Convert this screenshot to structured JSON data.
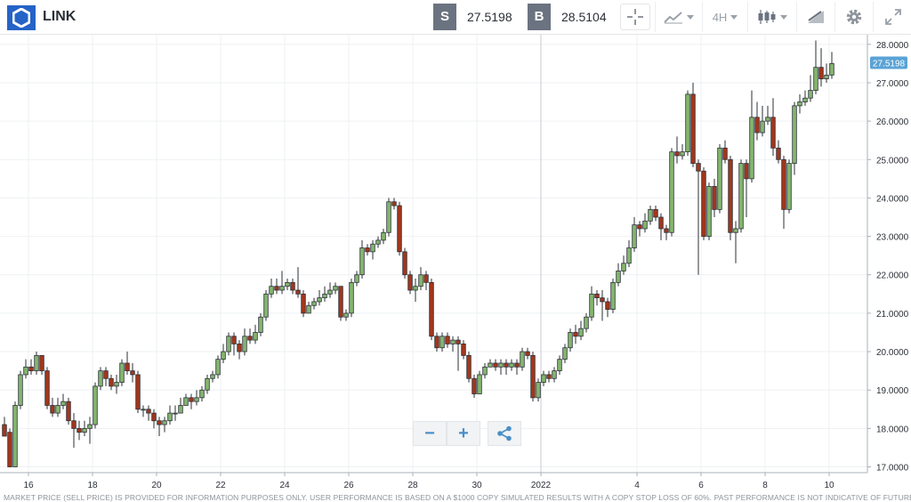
{
  "header": {
    "symbol": "LINK",
    "sell_tag": "S",
    "sell_price": "27.5198",
    "buy_tag": "B",
    "buy_price": "28.5104",
    "timeframe": "4H"
  },
  "icons": {
    "logo": "hexagon-logo-icon",
    "crosshair": "crosshair-icon",
    "chart_type": "line-chart-icon",
    "candles": "candlestick-icon",
    "drawing": "drawing-tool-icon",
    "settings": "gear-icon",
    "fullscreen": "expand-icon"
  },
  "colors": {
    "up": "#83b66f",
    "down": "#a3361c",
    "price_tag": "#5aa3d6",
    "grid": "#eef0f3",
    "crosshair": "#c7cbd1"
  },
  "zoom": {
    "minus": "−",
    "plus": "+"
  },
  "footer_text": "MARKET PRICE (SELL PRICE) IS PROVIDED FOR INFORMATION PURPOSES ONLY. USER PERFORMANCE IS BASED ON A $1000 COPY SIMULATED RESULTS WITH A COPY STOP LOSS OF 60%. PAST PERFORMANCE IS NOT INDICATIVE OF FUTURE RESULTS.",
  "chart_data": {
    "type": "candlestick",
    "interval": "4H",
    "ylim": [
      16.85,
      28.25
    ],
    "y_ticks": [
      "17.0000",
      "18.0000",
      "19.0000",
      "20.0000",
      "21.0000",
      "22.0000",
      "23.0000",
      "24.0000",
      "25.0000",
      "26.0000",
      "27.0000",
      "28.0000"
    ],
    "x_ticks": [
      "16",
      "18",
      "20",
      "22",
      "24",
      "26",
      "28",
      "30",
      "2022",
      "4",
      "6",
      "8",
      "10"
    ],
    "x_tick_index": [
      2,
      14,
      26,
      38,
      50,
      62,
      74,
      86,
      98,
      116,
      128,
      140,
      152
    ],
    "last_price": "27.5198",
    "crosshair_index": 98,
    "candles": [
      [
        18.1,
        17.8,
        18.3,
        17.9
      ],
      [
        17.9,
        17.0,
        18.0,
        17.0
      ],
      [
        17.0,
        18.6,
        18.7,
        17.0
      ],
      [
        18.6,
        19.4,
        19.5,
        18.5
      ],
      [
        19.4,
        19.6,
        19.8,
        19.3
      ],
      [
        19.6,
        19.5,
        19.8,
        19.4
      ],
      [
        19.5,
        19.9,
        20.0,
        19.4
      ],
      [
        19.9,
        19.5,
        19.9,
        19.4
      ],
      [
        19.5,
        18.6,
        19.6,
        18.5
      ],
      [
        18.6,
        18.4,
        18.8,
        18.3
      ],
      [
        18.4,
        18.6,
        18.8,
        18.3
      ],
      [
        18.6,
        18.7,
        18.9,
        18.5
      ],
      [
        18.7,
        18.2,
        18.8,
        18.1
      ],
      [
        18.2,
        18.0,
        18.4,
        17.5
      ],
      [
        18.0,
        17.9,
        18.2,
        17.7
      ],
      [
        17.9,
        18.0,
        18.2,
        17.8
      ],
      [
        18.0,
        18.1,
        18.3,
        17.6
      ],
      [
        18.1,
        19.1,
        19.2,
        18.0
      ],
      [
        19.1,
        19.5,
        19.6,
        19.0
      ],
      [
        19.5,
        19.3,
        19.6,
        19.1
      ],
      [
        19.3,
        19.1,
        19.4,
        19.0
      ],
      [
        19.1,
        19.2,
        19.4,
        18.9
      ],
      [
        19.2,
        19.7,
        19.8,
        19.1
      ],
      [
        19.7,
        19.5,
        20.0,
        19.4
      ],
      [
        19.5,
        19.4,
        19.7,
        19.2
      ],
      [
        19.4,
        18.5,
        19.5,
        18.4
      ],
      [
        18.5,
        18.5,
        18.6,
        18.3
      ],
      [
        18.5,
        18.4,
        18.6,
        18.2
      ],
      [
        18.4,
        18.2,
        18.5,
        18.0
      ],
      [
        18.2,
        18.1,
        18.3,
        17.8
      ],
      [
        18.1,
        18.2,
        18.3,
        17.9
      ],
      [
        18.2,
        18.4,
        18.6,
        18.1
      ],
      [
        18.4,
        18.4,
        18.6,
        18.2
      ],
      [
        18.4,
        18.6,
        18.8,
        18.4
      ],
      [
        18.6,
        18.8,
        18.9,
        18.6
      ],
      [
        18.8,
        18.7,
        18.9,
        18.5
      ],
      [
        18.7,
        18.8,
        19.0,
        18.6
      ],
      [
        18.8,
        19.0,
        19.1,
        18.7
      ],
      [
        19.0,
        19.3,
        19.4,
        18.9
      ],
      [
        19.3,
        19.4,
        19.5,
        19.2
      ],
      [
        19.4,
        19.8,
        19.9,
        19.3
      ],
      [
        19.8,
        20.0,
        20.2,
        19.7
      ],
      [
        20.0,
        20.4,
        20.5,
        19.9
      ],
      [
        20.4,
        20.2,
        20.5,
        19.9
      ],
      [
        20.2,
        20.0,
        20.3,
        19.8
      ],
      [
        20.0,
        20.4,
        20.6,
        19.9
      ],
      [
        20.4,
        20.3,
        20.6,
        20.2
      ],
      [
        20.3,
        20.5,
        20.7,
        20.2
      ],
      [
        20.5,
        20.9,
        21.0,
        20.4
      ],
      [
        20.9,
        21.5,
        21.6,
        20.8
      ],
      [
        21.5,
        21.7,
        21.9,
        21.4
      ],
      [
        21.7,
        21.6,
        21.9,
        21.5
      ],
      [
        21.6,
        21.7,
        22.1,
        21.5
      ],
      [
        21.7,
        21.8,
        21.9,
        21.6
      ],
      [
        21.8,
        21.6,
        21.9,
        21.5
      ],
      [
        21.6,
        21.5,
        22.2,
        21.4
      ],
      [
        21.5,
        21.0,
        21.6,
        20.9
      ],
      [
        21.0,
        21.2,
        21.3,
        21.0
      ],
      [
        21.2,
        21.3,
        21.4,
        21.1
      ],
      [
        21.3,
        21.4,
        21.6,
        21.2
      ],
      [
        21.4,
        21.5,
        21.7,
        21.3
      ],
      [
        21.5,
        21.6,
        21.8,
        21.4
      ],
      [
        21.6,
        21.7,
        21.8,
        21.5
      ],
      [
        21.7,
        20.9,
        21.7,
        20.8
      ],
      [
        20.9,
        21.0,
        21.1,
        20.8
      ],
      [
        21.0,
        21.8,
        21.9,
        20.9
      ],
      [
        21.8,
        22.0,
        22.1,
        21.7
      ],
      [
        22.0,
        22.7,
        22.9,
        21.9
      ],
      [
        22.7,
        22.6,
        22.8,
        22.5
      ],
      [
        22.6,
        22.8,
        22.9,
        22.4
      ],
      [
        22.8,
        22.9,
        23.0,
        22.7
      ],
      [
        22.9,
        23.1,
        23.2,
        22.8
      ],
      [
        23.1,
        23.9,
        24.0,
        23.0
      ],
      [
        23.9,
        23.8,
        24.0,
        23.7
      ],
      [
        23.8,
        22.6,
        23.9,
        22.5
      ],
      [
        22.6,
        22.0,
        22.7,
        21.9
      ],
      [
        22.0,
        21.6,
        22.1,
        21.5
      ],
      [
        21.6,
        21.7,
        21.9,
        21.3
      ],
      [
        21.7,
        22.0,
        22.2,
        21.6
      ],
      [
        22.0,
        21.8,
        22.1,
        21.6
      ],
      [
        21.8,
        20.4,
        21.9,
        20.3
      ],
      [
        20.4,
        20.1,
        20.5,
        20.0
      ],
      [
        20.1,
        20.4,
        20.5,
        20.0
      ],
      [
        20.4,
        20.2,
        20.5,
        20.1
      ],
      [
        20.2,
        20.3,
        20.4,
        20.0
      ],
      [
        20.3,
        20.2,
        20.4,
        19.5
      ],
      [
        20.2,
        19.9,
        20.3,
        19.8
      ],
      [
        19.9,
        19.3,
        20.0,
        19.2
      ],
      [
        19.3,
        18.9,
        19.4,
        18.8
      ],
      [
        18.9,
        19.4,
        19.5,
        18.9
      ],
      [
        19.4,
        19.6,
        19.7,
        19.3
      ],
      [
        19.6,
        19.7,
        19.8,
        19.6
      ],
      [
        19.7,
        19.6,
        19.8,
        19.5
      ],
      [
        19.6,
        19.7,
        19.8,
        19.4
      ],
      [
        19.7,
        19.6,
        19.8,
        19.4
      ],
      [
        19.6,
        19.7,
        19.8,
        19.5
      ],
      [
        19.7,
        19.6,
        19.8,
        19.4
      ],
      [
        19.6,
        20.0,
        20.1,
        19.5
      ],
      [
        20.0,
        19.9,
        20.1,
        19.8
      ],
      [
        19.9,
        18.8,
        20.0,
        18.7
      ],
      [
        18.8,
        19.2,
        19.3,
        18.7
      ],
      [
        19.2,
        19.4,
        19.5,
        19.1
      ],
      [
        19.4,
        19.3,
        19.5,
        19.2
      ],
      [
        19.3,
        19.5,
        19.6,
        19.2
      ],
      [
        19.5,
        19.8,
        19.9,
        19.4
      ],
      [
        19.8,
        20.1,
        20.2,
        19.7
      ],
      [
        20.1,
        20.5,
        20.6,
        20.0
      ],
      [
        20.5,
        20.4,
        20.7,
        20.2
      ],
      [
        20.4,
        20.6,
        20.8,
        20.3
      ],
      [
        20.6,
        20.9,
        21.0,
        20.5
      ],
      [
        20.9,
        21.5,
        21.7,
        20.8
      ],
      [
        21.5,
        21.4,
        21.6,
        21.2
      ],
      [
        21.4,
        21.3,
        21.6,
        20.8
      ],
      [
        21.3,
        21.1,
        21.4,
        20.9
      ],
      [
        21.1,
        21.8,
        21.9,
        21.0
      ],
      [
        21.8,
        22.1,
        22.3,
        21.7
      ],
      [
        22.1,
        22.3,
        22.5,
        22.0
      ],
      [
        22.3,
        22.7,
        22.9,
        22.2
      ],
      [
        22.7,
        23.3,
        23.5,
        22.6
      ],
      [
        23.3,
        23.2,
        23.4,
        23.0
      ],
      [
        23.2,
        23.4,
        23.6,
        23.1
      ],
      [
        23.4,
        23.7,
        23.8,
        23.3
      ],
      [
        23.7,
        23.5,
        23.8,
        23.4
      ],
      [
        23.5,
        23.2,
        23.6,
        22.9
      ],
      [
        23.2,
        23.1,
        23.3,
        22.9
      ],
      [
        23.1,
        25.2,
        25.3,
        23.0
      ],
      [
        25.2,
        25.1,
        25.6,
        24.9
      ],
      [
        25.1,
        25.2,
        25.4,
        25.0
      ],
      [
        25.2,
        26.7,
        26.8,
        25.1
      ],
      [
        26.7,
        24.9,
        27.0,
        24.8
      ],
      [
        24.9,
        24.7,
        25.0,
        22.0
      ],
      [
        24.7,
        23.0,
        24.8,
        22.9
      ],
      [
        23.0,
        24.3,
        24.4,
        22.9
      ],
      [
        24.3,
        23.7,
        24.5,
        23.5
      ],
      [
        23.7,
        25.3,
        25.4,
        23.6
      ],
      [
        25.3,
        25.0,
        25.5,
        24.9
      ],
      [
        25.0,
        23.1,
        25.1,
        22.9
      ],
      [
        23.1,
        23.2,
        23.4,
        22.3
      ],
      [
        23.2,
        24.9,
        25.0,
        23.1
      ],
      [
        24.9,
        24.5,
        25.0,
        23.5
      ],
      [
        24.5,
        26.1,
        26.8,
        24.4
      ],
      [
        26.1,
        25.7,
        26.5,
        25.5
      ],
      [
        25.7,
        26.0,
        26.4,
        25.6
      ],
      [
        26.0,
        26.1,
        26.4,
        25.9
      ],
      [
        26.1,
        25.3,
        26.6,
        25.1
      ],
      [
        25.3,
        25.0,
        25.5,
        24.9
      ],
      [
        25.0,
        23.7,
        25.1,
        23.2
      ],
      [
        23.7,
        24.9,
        25.0,
        23.6
      ],
      [
        24.9,
        26.4,
        26.5,
        24.6
      ],
      [
        26.4,
        26.5,
        26.7,
        26.2
      ],
      [
        26.5,
        26.6,
        26.8,
        26.4
      ],
      [
        26.6,
        26.8,
        27.2,
        26.5
      ],
      [
        26.8,
        27.4,
        28.1,
        26.7
      ],
      [
        27.4,
        27.1,
        27.9,
        26.9
      ],
      [
        27.1,
        27.2,
        27.5,
        27.0
      ],
      [
        27.2,
        27.5,
        27.8,
        27.1
      ]
    ]
  }
}
